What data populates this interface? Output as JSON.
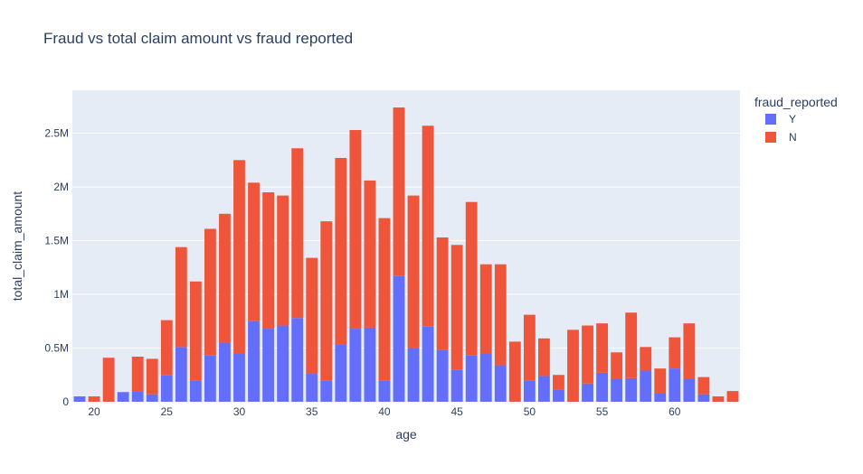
{
  "chart_data": {
    "type": "bar",
    "title": "Fraud vs total claim amount vs fraud reported",
    "xlabel": "age",
    "ylabel": "total_claim_amount",
    "xlim": [
      18.5,
      64.5
    ],
    "ylim": [
      0,
      2900000
    ],
    "x_ticks": [
      20,
      25,
      30,
      35,
      40,
      45,
      50,
      55,
      60
    ],
    "y_ticks": [
      0,
      500000,
      1000000,
      1500000,
      2000000,
      2500000
    ],
    "y_tick_labels": [
      "0",
      "0.5M",
      "1M",
      "1.5M",
      "2M",
      "2.5M"
    ],
    "barmode": "stack",
    "legend_title": "fraud_reported",
    "legend_position": "top-right",
    "grid": true,
    "series": [
      {
        "name": "Y",
        "color": "#636efa",
        "x": [
          19,
          20,
          21,
          22,
          23,
          24,
          25,
          26,
          27,
          28,
          29,
          30,
          31,
          32,
          33,
          34,
          35,
          36,
          37,
          38,
          39,
          40,
          41,
          42,
          43,
          44,
          45,
          46,
          47,
          48,
          49,
          50,
          51,
          52,
          53,
          54,
          55,
          56,
          57,
          58,
          59,
          60,
          61,
          62,
          63,
          64
        ],
        "values": [
          50000,
          0,
          0,
          90000,
          100000,
          70000,
          250000,
          510000,
          200000,
          430000,
          550000,
          450000,
          750000,
          680000,
          710000,
          780000,
          260000,
          200000,
          530000,
          680000,
          690000,
          200000,
          1170000,
          500000,
          700000,
          480000,
          300000,
          430000,
          450000,
          340000,
          0,
          200000,
          240000,
          110000,
          0,
          170000,
          270000,
          210000,
          220000,
          290000,
          80000,
          310000,
          210000,
          70000,
          0,
          0
        ]
      },
      {
        "name": "N",
        "color": "#ef553b",
        "x": [
          19,
          20,
          21,
          22,
          23,
          24,
          25,
          26,
          27,
          28,
          29,
          30,
          31,
          32,
          33,
          34,
          35,
          36,
          37,
          38,
          39,
          40,
          41,
          42,
          43,
          44,
          45,
          46,
          47,
          48,
          49,
          50,
          51,
          52,
          53,
          54,
          55,
          56,
          57,
          58,
          59,
          60,
          61,
          62,
          63,
          64
        ],
        "values": [
          0,
          50000,
          410000,
          0,
          320000,
          330000,
          510000,
          930000,
          920000,
          1180000,
          1200000,
          1800000,
          1290000,
          1270000,
          1210000,
          1580000,
          1080000,
          1480000,
          1740000,
          1850000,
          1370000,
          1510000,
          1570000,
          1420000,
          1870000,
          1050000,
          1160000,
          1430000,
          830000,
          940000,
          560000,
          610000,
          350000,
          140000,
          670000,
          540000,
          460000,
          250000,
          610000,
          220000,
          230000,
          290000,
          520000,
          160000,
          50000,
          100000
        ]
      }
    ]
  }
}
